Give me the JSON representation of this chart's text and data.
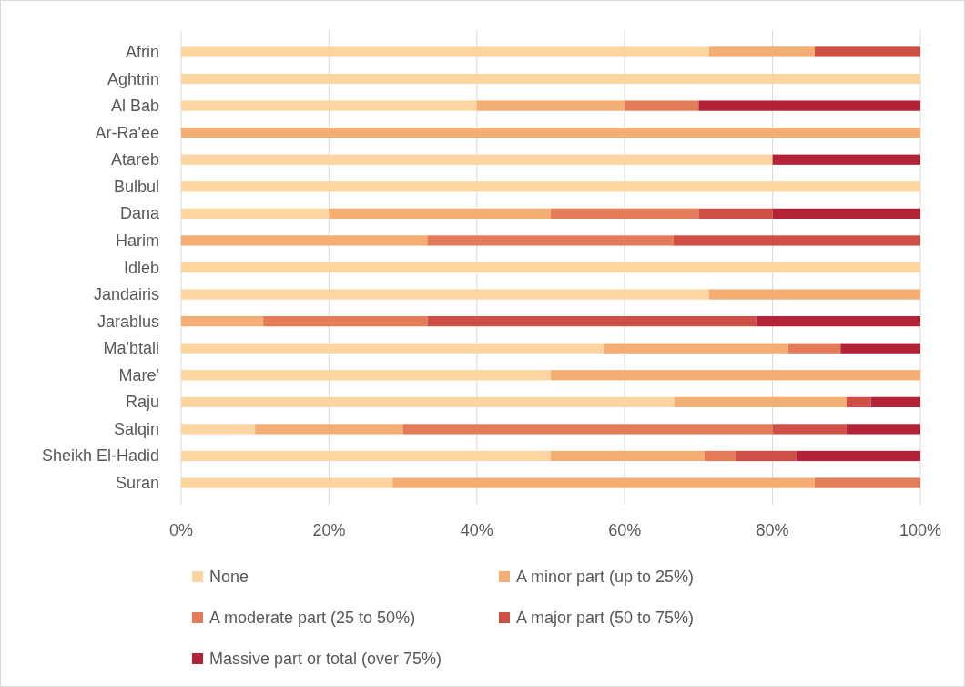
{
  "chart_data": {
    "type": "bar",
    "orientation": "horizontal",
    "stacked": true,
    "grid": "x",
    "legend": "bottom",
    "categories": [
      "Afrin",
      "Aghtrin",
      "Al Bab",
      "Ar-Ra'ee",
      "Atareb",
      "Bulbul",
      "Dana",
      "Harim",
      "Idleb",
      "Jandairis",
      "Jarablus",
      "Ma'btali",
      "Mare'",
      "Raju",
      "Salqin",
      "Sheikh El-Hadid",
      "Suran"
    ],
    "xlim": [
      0,
      100
    ],
    "xticks": [
      {
        "value": 0,
        "label": "0%"
      },
      {
        "value": 20,
        "label": "20%"
      },
      {
        "value": 40,
        "label": "40%"
      },
      {
        "value": 60,
        "label": "60%"
      },
      {
        "value": 80,
        "label": "80%"
      },
      {
        "value": 100,
        "label": "100%"
      }
    ],
    "series": [
      {
        "name": "None",
        "color": "#fdd5a0",
        "values": [
          71.4,
          100,
          40,
          0,
          80,
          100,
          20,
          0,
          100,
          71.4,
          0,
          57.1,
          50,
          66.7,
          10,
          50,
          28.6
        ]
      },
      {
        "name": "A minor part (up to 25%)",
        "color": "#f4ad72",
        "values": [
          14.3,
          0,
          20,
          100,
          0,
          0,
          30,
          33.3,
          0,
          28.6,
          11.1,
          25,
          50,
          23.3,
          20,
          20.8,
          57.1
        ]
      },
      {
        "name": "A moderate part (25 to 50%)",
        "color": "#e47c5a",
        "values": [
          0,
          0,
          10,
          0,
          0,
          0,
          20,
          33.3,
          0,
          0,
          22.2,
          7.1,
          0,
          0,
          50,
          4.2,
          14.3
        ]
      },
      {
        "name": "A major part (50 to 75%)",
        "color": "#cf4e45",
        "values": [
          14.3,
          0,
          0,
          0,
          0,
          0,
          10,
          33.4,
          0,
          0,
          44.5,
          0,
          0,
          3.3,
          10,
          8.3,
          0
        ]
      },
      {
        "name": "Massive part or total (over 75%)",
        "color": "#b32236",
        "values": [
          0,
          0,
          30,
          0,
          20,
          0,
          20,
          0,
          0,
          0,
          22.2,
          10.8,
          0,
          6.7,
          10,
          16.7,
          0
        ]
      }
    ]
  }
}
